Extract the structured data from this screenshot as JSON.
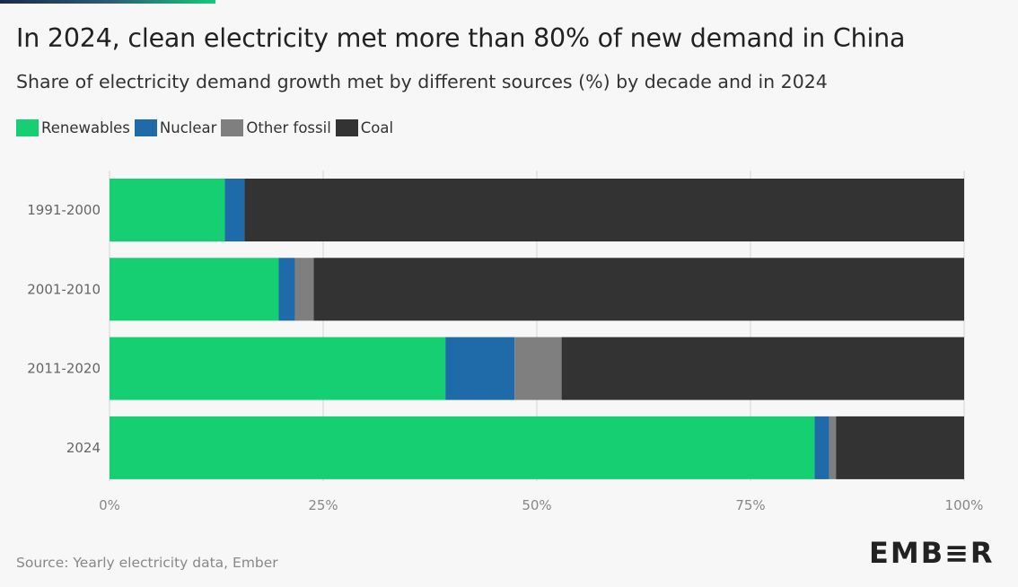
{
  "title": "In 2024, clean electricity met more than 80% of new demand in China",
  "subtitle": "Share of electricity demand growth met by different sources (%) by decade and in 2024",
  "source": "Source: Yearly electricity data, Ember",
  "logo_text": "EMB≡R",
  "colors": {
    "renewables": "#16cf73",
    "nuclear": "#1f6aa9",
    "other_fossil": "#7f7f7f",
    "coal": "#333333",
    "grid": "#d6d6d6"
  },
  "chart_data": {
    "type": "bar",
    "orientation": "horizontal",
    "stacked": true,
    "categories": [
      "1991-2000",
      "2001-2010",
      "2011-2020",
      "2024"
    ],
    "series": [
      {
        "name": "Renewables",
        "color": "#16cf73",
        "values": [
          13.5,
          19.8,
          39.3,
          82.5
        ]
      },
      {
        "name": "Nuclear",
        "color": "#1f6aa9",
        "values": [
          2.3,
          1.9,
          8.1,
          1.7
        ]
      },
      {
        "name": "Other fossil",
        "color": "#7f7f7f",
        "values": [
          0,
          2.2,
          5.5,
          0.8
        ]
      },
      {
        "name": "Coal",
        "color": "#333333",
        "values": [
          84.2,
          76.1,
          47.1,
          15.0
        ]
      }
    ],
    "xlim": [
      0,
      100
    ],
    "xticks": [
      0,
      25,
      50,
      75,
      100
    ],
    "xtick_labels": [
      "0%",
      "25%",
      "50%",
      "75%",
      "100%"
    ],
    "grid": true,
    "legend_position": "top-left"
  }
}
